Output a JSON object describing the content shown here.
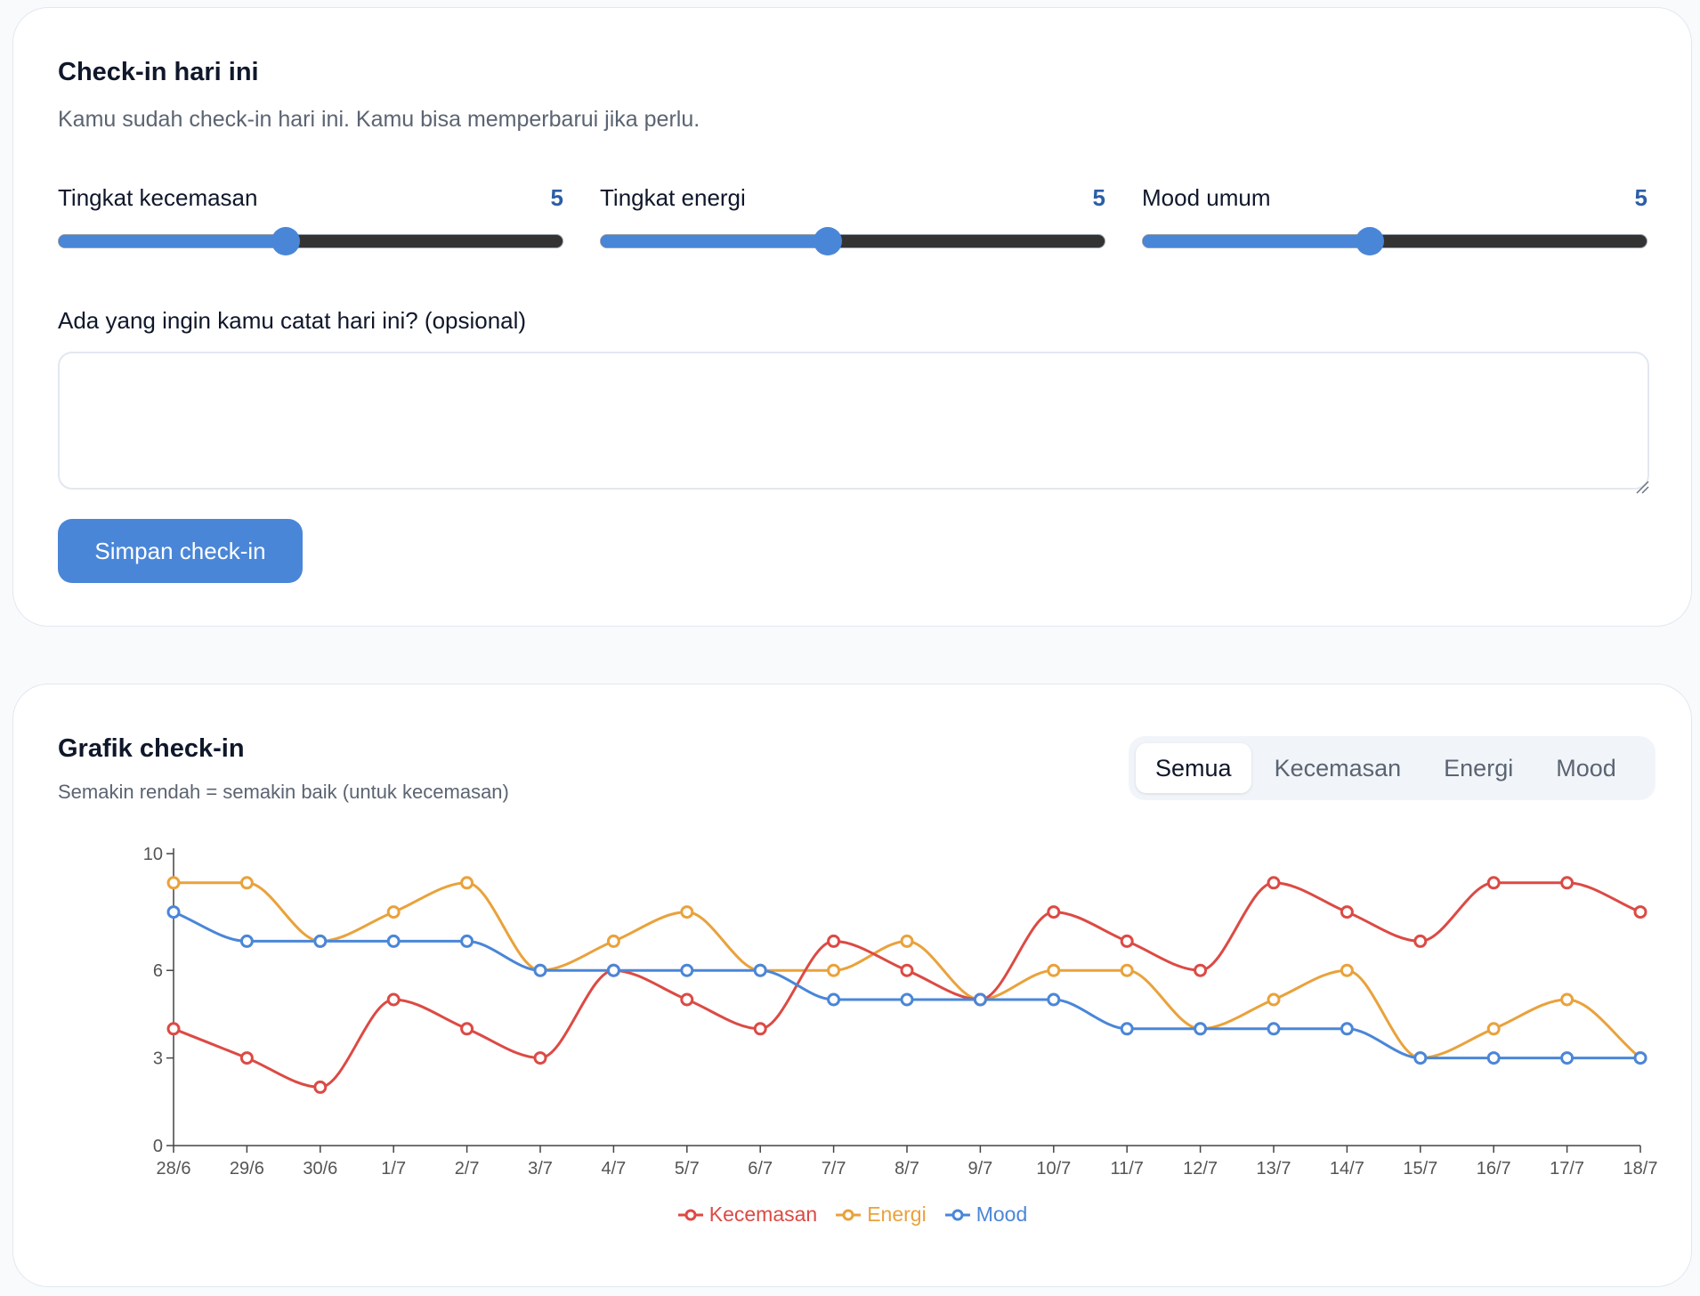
{
  "checkin": {
    "title": "Check-in hari ini",
    "subtitle": "Kamu sudah check-in hari ini. Kamu bisa memperbarui jika perlu.",
    "sliders": [
      {
        "label": "Tingkat kecemasan",
        "value": "5",
        "fraction": 0.45
      },
      {
        "label": "Tingkat energi",
        "value": "5",
        "fraction": 0.45
      },
      {
        "label": "Mood umum",
        "value": "5",
        "fraction": 0.45
      }
    ],
    "note_label": "Ada yang ingin kamu catat hari ini? (opsional)",
    "note_value": "",
    "save_label": "Simpan check-in"
  },
  "chart": {
    "title": "Grafik check-in",
    "subtitle": "Semakin rendah = semakin baik (untuk kecemasan)",
    "tabs": [
      "Semua",
      "Kecemasan",
      "Energi",
      "Mood"
    ],
    "active_tab": "Semua"
  },
  "colors": {
    "accent": "#4a86d8",
    "kecemasan": "#dc4a44",
    "energi": "#e9a23b",
    "mood": "#4a86d8"
  },
  "chart_data": {
    "type": "line",
    "x": [
      "28/6",
      "29/6",
      "30/6",
      "1/7",
      "2/7",
      "3/7",
      "4/7",
      "5/7",
      "6/7",
      "7/7",
      "8/7",
      "9/7",
      "10/7",
      "11/7",
      "12/7",
      "13/7",
      "14/7",
      "15/7",
      "16/7",
      "17/7",
      "18/7"
    ],
    "y_ticks": [
      0,
      3,
      6,
      10
    ],
    "ylim": [
      0,
      10
    ],
    "series": [
      {
        "name": "Kecemasan",
        "color": "#dc4a44",
        "values": [
          4,
          3,
          2,
          5,
          4,
          3,
          6,
          5,
          4,
          7,
          6,
          5,
          8,
          7,
          6,
          9,
          8,
          7,
          9,
          9,
          8
        ]
      },
      {
        "name": "Energi",
        "color": "#e9a23b",
        "values": [
          9,
          9,
          7,
          8,
          9,
          6,
          7,
          8,
          6,
          6,
          7,
          5,
          6,
          6,
          4,
          5,
          6,
          3,
          4,
          5,
          3
        ]
      },
      {
        "name": "Mood",
        "color": "#4a86d8",
        "values": [
          8,
          7,
          7,
          7,
          7,
          6,
          6,
          6,
          6,
          5,
          5,
          5,
          5,
          4,
          4,
          4,
          4,
          3,
          3,
          3,
          3
        ]
      }
    ],
    "legend_position": "bottom-center",
    "grid": false
  }
}
